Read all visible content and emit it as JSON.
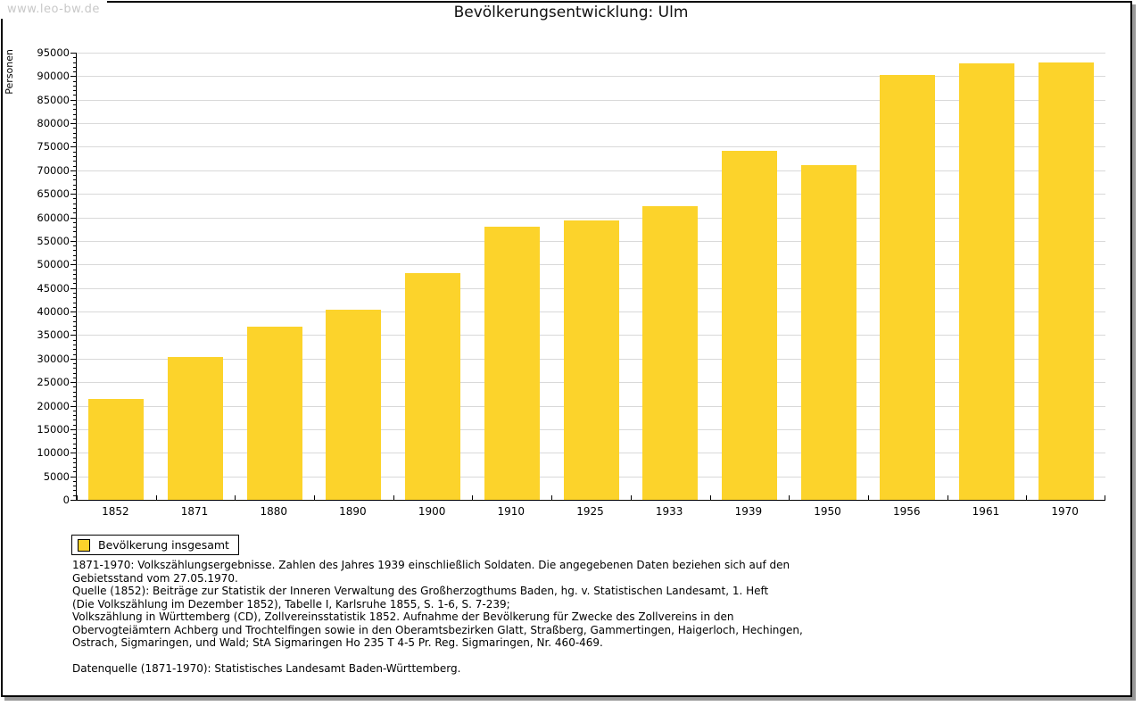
{
  "watermark": "www.leo-bw.de",
  "title": "Bevölkerungsentwicklung: Ulm",
  "chart_data": {
    "type": "bar",
    "title": "Bevölkerungsentwicklung: Ulm",
    "ylabel": "Personen",
    "xlabel": "",
    "categories": [
      "1852",
      "1871",
      "1880",
      "1890",
      "1900",
      "1910",
      "1925",
      "1933",
      "1939",
      "1950",
      "1956",
      "1961",
      "1970"
    ],
    "values": [
      21400,
      30300,
      36700,
      40400,
      48100,
      58000,
      59300,
      62300,
      74200,
      71100,
      90300,
      92800,
      93000
    ],
    "ylim": [
      0,
      95000
    ],
    "ytick_step": 5000,
    "yminor_step": 1000,
    "grid": true,
    "bar_color": "#FCD32B",
    "gridline_color": "#d9d9d9",
    "legend_position": "below-left"
  },
  "legend": {
    "label": "Bevölkerung insgesamt",
    "swatch_color": "#FCD32B"
  },
  "footnotes": [
    "1871-1970: Volkszählungsergebnisse. Zahlen des Jahres 1939 einschließlich Soldaten. Die angegebenen Daten beziehen sich auf den",
    "Gebietsstand vom 27.05.1970.",
    "Quelle (1852): Beiträge zur Statistik der Inneren Verwaltung des Großherzogthums Baden, hg. v. Statistischen Landesamt, 1. Heft",
    "(Die Volkszählung im Dezember 1852), Tabelle I, Karlsruhe 1855, S. 1-6, S. 7-239;",
    "Volkszählung in Württemberg (CD), Zollvereinsstatistik 1852. Aufnahme der Bevölkerung für Zwecke des Zollvereins in den",
    "Obervogteiämtern Achberg und Trochtelfingen sowie in den Oberamtsbezirken Glatt, Straßberg, Gammertingen, Haigerloch, Hechingen,",
    "Ostrach, Sigmaringen, und Wald; StA Sigmaringen Ho 235 T 4-5 Pr. Reg. Sigmaringen, Nr. 460-469.",
    "",
    "Datenquelle (1871-1970): Statistisches Landesamt Baden-Württemberg."
  ],
  "colors": {
    "bar": "#FCD32B",
    "frame_border": "#000000",
    "frame_shadow": "#999999",
    "watermark_text": "#c8c8c8",
    "gridline": "#d9d9d9"
  }
}
